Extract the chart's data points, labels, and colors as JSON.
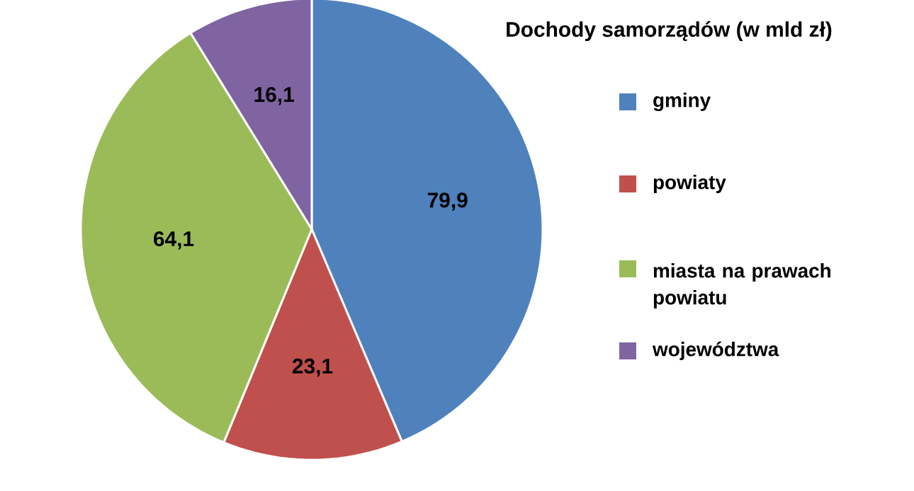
{
  "chart_data": {
    "type": "pie",
    "title": "Dochody samorządów (w mld zł)",
    "categories": [
      "gminy",
      "powiaty",
      "miasta na prawach powiatu",
      "województwa"
    ],
    "values": [
      79.9,
      23.1,
      64.1,
      16.1
    ],
    "colors": [
      "#4f81bd",
      "#c0504d",
      "#9bbb59",
      "#8064a2"
    ],
    "value_labels": [
      "79,9",
      "23,1",
      "64,1",
      "16,1"
    ],
    "legend": "right"
  }
}
